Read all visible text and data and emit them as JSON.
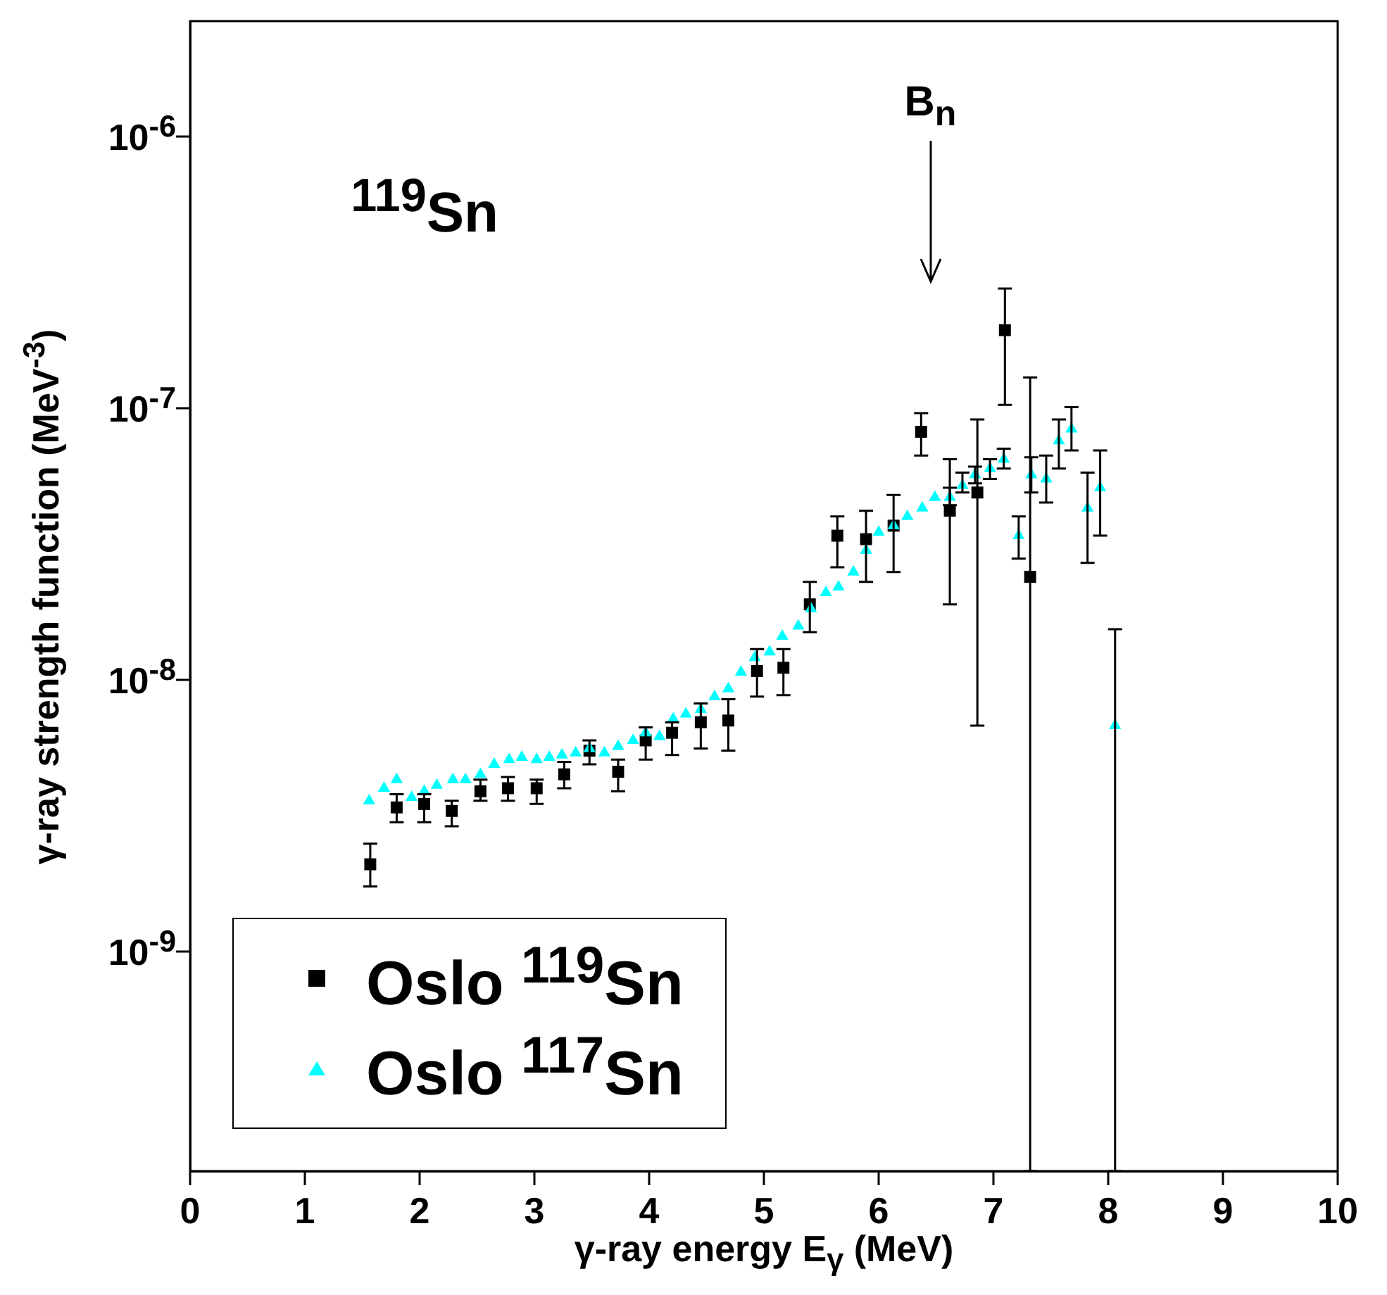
{
  "chart_data": {
    "type": "scatter",
    "xlabel": "γ-ray energy E$_{γ}$ (MeV)",
    "ylabel": "γ-ray strength function (MeV$^{-3}$)",
    "xlim": [
      0,
      10
    ],
    "xticks": [
      0,
      1,
      2,
      3,
      4,
      5,
      6,
      7,
      8,
      9,
      10
    ],
    "ylim": [
      1.56e-10,
      2.66e-06
    ],
    "yticks": [
      {
        "value": 1e-09,
        "label": "10$^{-9}$"
      },
      {
        "value": 1e-08,
        "label": "10$^{-8}$"
      },
      {
        "value": 1e-07,
        "label": "10$^{-7}$"
      },
      {
        "value": 1e-06,
        "label": "10$^{-6}$"
      }
    ],
    "log": "y",
    "grid": false,
    "legend": "bottom left",
    "annotations": [
      "$^{119}$Sn",
      "B$_{n}$"
    ],
    "series": [
      {
        "name": "Oslo $^{119}$Sn",
        "color": "#000000",
        "marker": "square",
        "x": [
          1.57,
          1.8,
          2.04,
          2.28,
          2.53,
          2.77,
          3.02,
          3.26,
          3.48,
          3.73,
          3.97,
          4.2,
          4.45,
          4.69,
          4.94,
          5.17,
          5.4,
          5.64,
          5.89,
          6.13,
          6.37,
          6.62,
          6.86,
          7.1,
          7.32
        ],
        "values": [
          2.1e-09,
          3.4e-09,
          3.5e-09,
          3.3e-09,
          3.9e-09,
          4e-09,
          4e-09,
          4.5e-09,
          5.5e-09,
          4.6e-09,
          6e-09,
          6.4e-09,
          7e-09,
          7.1e-09,
          1.08e-08,
          1.11e-08,
          1.9e-08,
          3.4e-08,
          3.3e-08,
          3.7e-08,
          8.2e-08,
          4.2e-08,
          4.9e-08,
          1.94e-07,
          2.4e-08
        ],
        "errors": [
          [
            1.74e-09,
            2.5e-09
          ],
          [
            3e-09,
            3.8e-09
          ],
          [
            3e-09,
            3.8e-09
          ],
          [
            2.9e-09,
            3.6e-09
          ],
          [
            3.6e-09,
            4.3e-09
          ],
          [
            3.6e-09,
            4.4e-09
          ],
          [
            3.5e-09,
            4.3e-09
          ],
          [
            4e-09,
            5e-09
          ],
          [
            4.9e-09,
            6e-09
          ],
          [
            3.9e-09,
            5.1e-09
          ],
          [
            5.1e-09,
            6.7e-09
          ],
          [
            5.3e-09,
            7e-09
          ],
          [
            5.6e-09,
            8.2e-09
          ],
          [
            5.5e-09,
            8.5e-09
          ],
          [
            8.7e-09,
            1.3e-08
          ],
          [
            8.8e-09,
            1.3e-08
          ],
          [
            1.5e-08,
            2.3e-08
          ],
          [
            2.6e-08,
            4e-08
          ],
          [
            2.3e-08,
            4.2e-08
          ],
          [
            2.5e-08,
            4.8e-08
          ],
          [
            6.7e-08,
            9.6e-08
          ],
          [
            1.9e-08,
            6.5e-08
          ],
          [
            6.8e-09,
            9.1e-08
          ],
          [
            1.03e-07,
            2.76e-07
          ],
          [
            1.56e-10,
            1.3e-07
          ]
        ]
      },
      {
        "name": "Oslo $^{117}$Sn",
        "color": "#00ffff",
        "marker": "triangle",
        "x": [
          1.56,
          1.69,
          1.8,
          1.93,
          2.04,
          2.15,
          2.29,
          2.4,
          2.53,
          2.65,
          2.78,
          2.89,
          3.02,
          3.13,
          3.24,
          3.36,
          3.48,
          3.61,
          3.73,
          3.86,
          3.97,
          4.09,
          4.21,
          4.32,
          4.45,
          4.57,
          4.69,
          4.8,
          4.92,
          5.05,
          5.16,
          5.3,
          5.41,
          5.54,
          5.65,
          5.78,
          5.89,
          6.0,
          6.13,
          6.25,
          6.38,
          6.49,
          6.62,
          6.73,
          6.84,
          6.97,
          7.09,
          7.22,
          7.33,
          7.46,
          7.57,
          7.68,
          7.82,
          7.93,
          8.06
        ],
        "values": [
          3.6e-09,
          4e-09,
          4.3e-09,
          3.7e-09,
          3.9e-09,
          4.1e-09,
          4.3e-09,
          4.3e-09,
          4.5e-09,
          4.9e-09,
          5.1e-09,
          5.2e-09,
          5.1e-09,
          5.2e-09,
          5.3e-09,
          5.4e-09,
          5.6e-09,
          5.4e-09,
          5.7e-09,
          6e-09,
          6.4e-09,
          6.2e-09,
          7.2e-09,
          7.5e-09,
          7.8e-09,
          8.7e-09,
          9.3e-09,
          1.07e-08,
          1.21e-08,
          1.27e-08,
          1.45e-08,
          1.58e-08,
          1.83e-08,
          2.1e-08,
          2.2e-08,
          2.5e-08,
          3e-08,
          3.5e-08,
          3.7e-08,
          4e-08,
          4.3e-08,
          4.7e-08,
          4.7e-08,
          5.2e-08,
          5.7e-08,
          6e-08,
          6.5e-08,
          3.4e-08,
          5.7e-08,
          5.5e-08,
          7.6e-08,
          8.4e-08,
          4.3e-08,
          5.1e-08,
          6.8e-09
        ],
        "errors": [
          null,
          null,
          null,
          null,
          null,
          null,
          null,
          null,
          null,
          null,
          null,
          null,
          null,
          null,
          null,
          null,
          null,
          null,
          null,
          null,
          null,
          null,
          null,
          null,
          null,
          null,
          null,
          null,
          null,
          null,
          null,
          null,
          null,
          null,
          null,
          null,
          null,
          null,
          null,
          null,
          null,
          null,
          [
            4.4e-08,
            5.1e-08
          ],
          [
            4.9e-08,
            5.8e-08
          ],
          [
            5.3e-08,
            6.1e-08
          ],
          [
            5.5e-08,
            6.5e-08
          ],
          [
            6e-08,
            7.1e-08
          ],
          [
            2.8e-08,
            4e-08
          ],
          [
            4.9e-08,
            6.6e-08
          ],
          [
            4.5e-08,
            6.7e-08
          ],
          [
            6e-08,
            9.1e-08
          ],
          [
            7e-08,
            1.01e-07
          ],
          [
            2.7e-08,
            5.8e-08
          ],
          [
            3.4e-08,
            7e-08
          ],
          [
            1.56e-10,
            1.54e-08
          ]
        ]
      }
    ]
  }
}
